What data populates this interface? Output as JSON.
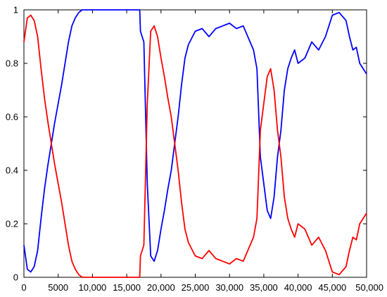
{
  "chart_data": {
    "type": "line",
    "title": "",
    "xlabel": "",
    "ylabel": "",
    "xlim": [
      0,
      50000
    ],
    "ylim": [
      0,
      1
    ],
    "grid": false,
    "legend": "none",
    "x_ticks": [
      {
        "value": 0,
        "label": "0"
      },
      {
        "value": 5000,
        "label": "5000"
      },
      {
        "value": 10000,
        "label": "10,000"
      },
      {
        "value": 15000,
        "label": "15,000"
      },
      {
        "value": 20000,
        "label": "20,000"
      },
      {
        "value": 25000,
        "label": "25,000"
      },
      {
        "value": 30000,
        "label": "30,000"
      },
      {
        "value": 35000,
        "label": "35,000"
      },
      {
        "value": 40000,
        "label": "40,000"
      },
      {
        "value": 45000,
        "label": "45,000"
      },
      {
        "value": 50000,
        "label": "50,000"
      }
    ],
    "y_ticks": [
      {
        "value": 0,
        "label": "0"
      },
      {
        "value": 0.2,
        "label": "0.2"
      },
      {
        "value": 0.4,
        "label": "0.4"
      },
      {
        "value": 0.6,
        "label": "0.6"
      },
      {
        "value": 0.8,
        "label": "0.8"
      },
      {
        "value": 1,
        "label": "1"
      }
    ],
    "x": [
      0,
      500,
      1000,
      1500,
      2000,
      2500,
      3000,
      3500,
      4000,
      4500,
      5000,
      5500,
      6000,
      6500,
      7000,
      7500,
      8000,
      8500,
      9000,
      9500,
      10000,
      11000,
      12000,
      13000,
      14000,
      15000,
      16000,
      16900,
      17000,
      17500,
      18000,
      18500,
      19000,
      19500,
      20000,
      20500,
      21000,
      21500,
      22000,
      22500,
      23000,
      23500,
      24000,
      25000,
      26000,
      27000,
      28000,
      29000,
      30000,
      31000,
      32000,
      33000,
      33500,
      34000,
      34500,
      35000,
      35500,
      36000,
      36500,
      37000,
      37500,
      38000,
      38500,
      39000,
      39500,
      40000,
      41000,
      42000,
      43000,
      44000,
      45000,
      46000,
      47000,
      47500,
      48000,
      48500,
      49000,
      49500,
      50000
    ],
    "series": [
      {
        "color": "#0000ff",
        "values": [
          0.12,
          0.03,
          0.02,
          0.04,
          0.1,
          0.22,
          0.33,
          0.42,
          0.5,
          0.58,
          0.65,
          0.72,
          0.8,
          0.88,
          0.94,
          0.97,
          0.99,
          1.0,
          1.0,
          1.0,
          1.0,
          1.0,
          1.0,
          1.0,
          1.0,
          1.0,
          1.0,
          1.0,
          0.92,
          0.88,
          0.35,
          0.08,
          0.06,
          0.1,
          0.18,
          0.25,
          0.33,
          0.4,
          0.5,
          0.6,
          0.72,
          0.82,
          0.87,
          0.92,
          0.93,
          0.9,
          0.93,
          0.94,
          0.95,
          0.93,
          0.94,
          0.88,
          0.85,
          0.78,
          0.45,
          0.35,
          0.25,
          0.22,
          0.3,
          0.45,
          0.55,
          0.7,
          0.78,
          0.82,
          0.85,
          0.8,
          0.82,
          0.88,
          0.85,
          0.9,
          0.98,
          0.99,
          0.96,
          0.9,
          0.85,
          0.86,
          0.8,
          0.78,
          0.76
        ]
      },
      {
        "color": "#ff0000",
        "values": [
          0.88,
          0.97,
          0.98,
          0.96,
          0.9,
          0.78,
          0.67,
          0.58,
          0.5,
          0.42,
          0.35,
          0.28,
          0.2,
          0.12,
          0.06,
          0.03,
          0.01,
          0.0,
          0.0,
          0.0,
          0.0,
          0.0,
          0.0,
          0.0,
          0.0,
          0.0,
          0.0,
          0.0,
          0.08,
          0.12,
          0.65,
          0.92,
          0.94,
          0.9,
          0.82,
          0.75,
          0.67,
          0.6,
          0.5,
          0.4,
          0.28,
          0.18,
          0.13,
          0.08,
          0.07,
          0.1,
          0.07,
          0.06,
          0.05,
          0.07,
          0.06,
          0.12,
          0.15,
          0.22,
          0.55,
          0.65,
          0.75,
          0.78,
          0.7,
          0.55,
          0.45,
          0.3,
          0.22,
          0.18,
          0.15,
          0.2,
          0.18,
          0.12,
          0.15,
          0.1,
          0.02,
          0.01,
          0.04,
          0.1,
          0.15,
          0.14,
          0.2,
          0.22,
          0.24
        ]
      }
    ]
  }
}
